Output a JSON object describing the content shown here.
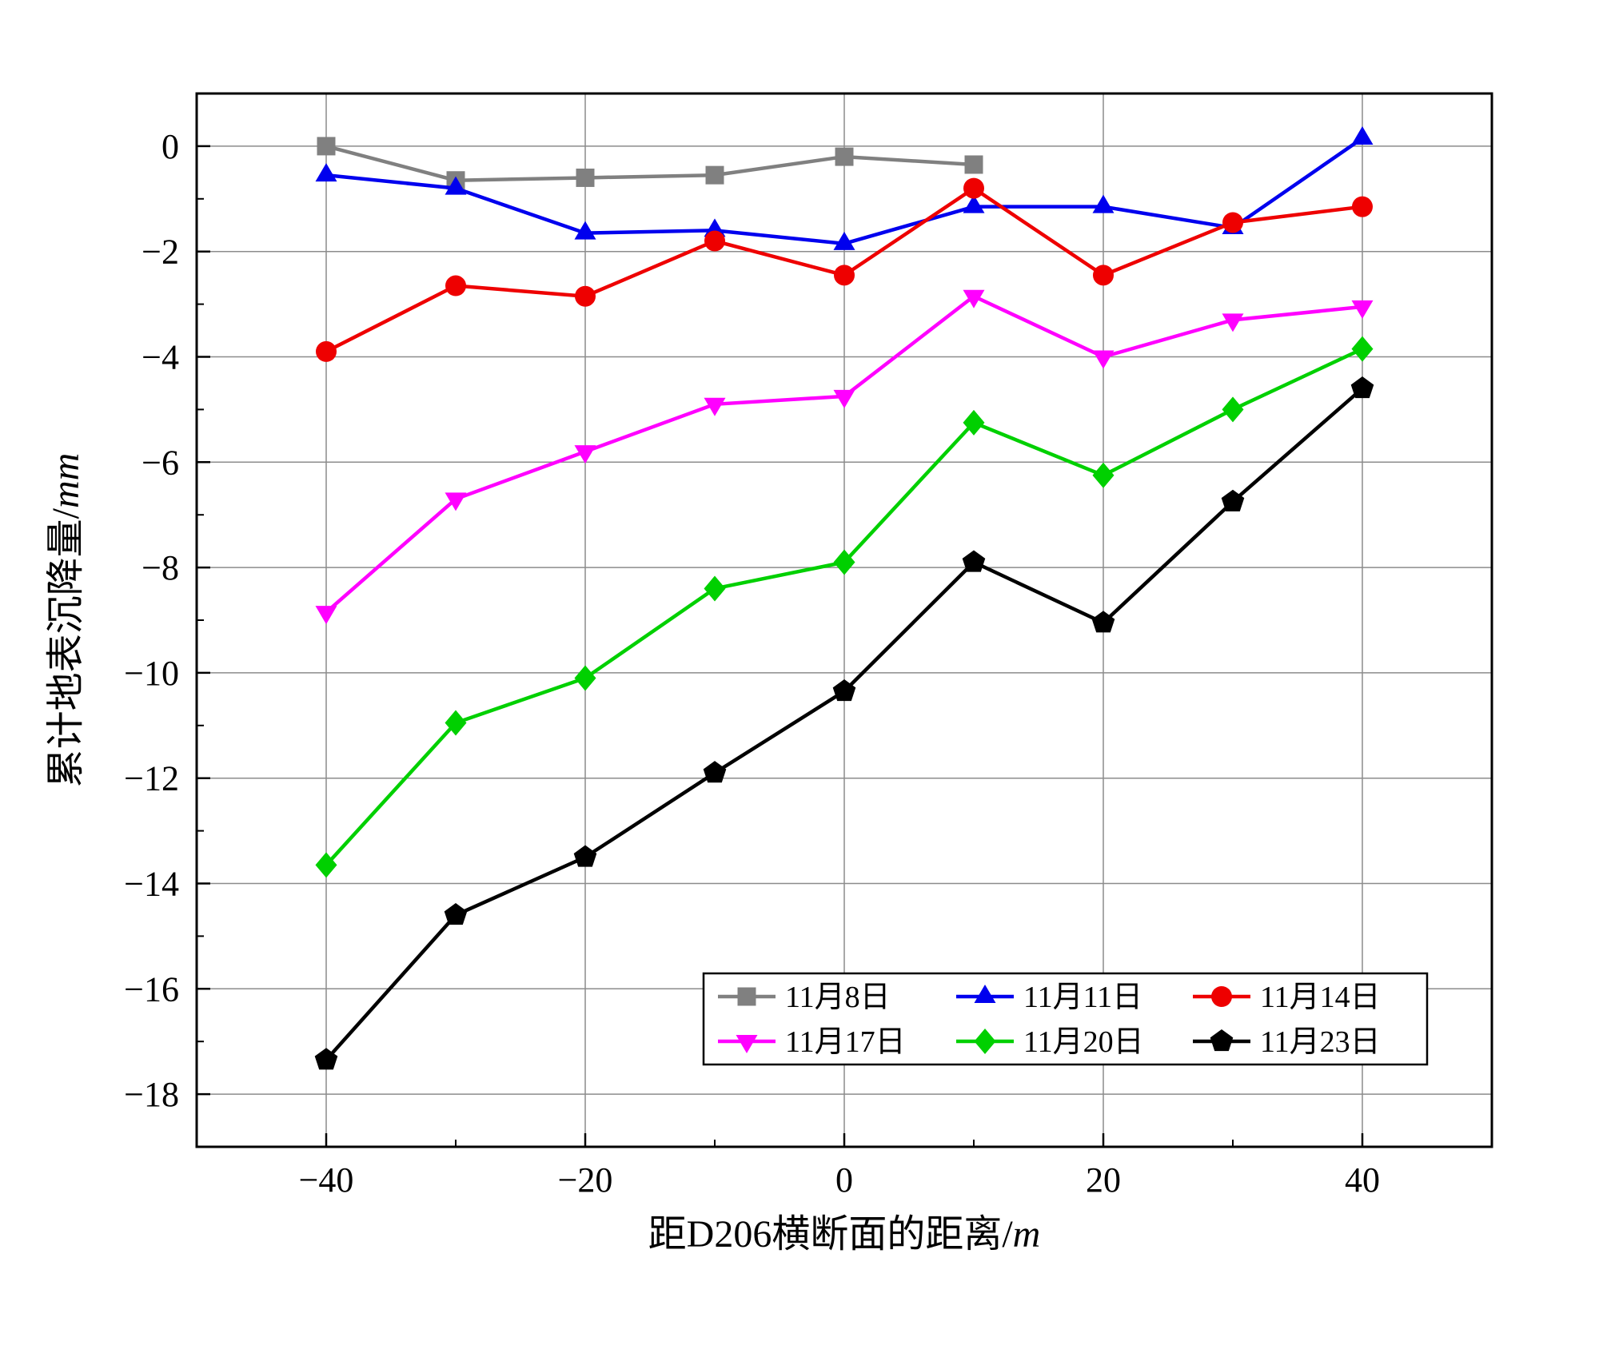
{
  "figure": {
    "background": "#ffffff"
  },
  "chart_data": {
    "type": "line",
    "title": "",
    "xlabel": "距D206横断面的距离/m",
    "ylabel": "累计地表沉降量/mm",
    "xlim": [
      -50,
      50
    ],
    "ylim": [
      -19,
      1
    ],
    "grid": true,
    "grid_color": "#8c8c8c",
    "axis_color": "#000000",
    "x_ticks": [
      -40,
      -20,
      0,
      20,
      40
    ],
    "x_tick_labels": [
      "−40",
      "−20",
      "0",
      "20",
      "40"
    ],
    "x_minor_step": 10,
    "y_ticks": [
      0,
      -2,
      -4,
      -6,
      -8,
      -10,
      -12,
      -14,
      -16,
      -18
    ],
    "y_tick_labels": [
      "0",
      "−2",
      "−4",
      "−6",
      "−8",
      "−10",
      "−12",
      "−14",
      "−16",
      "−18"
    ],
    "y_minor_step": 1,
    "x": [
      -40,
      -30,
      -20,
      -10,
      0,
      10,
      20,
      30,
      40
    ],
    "series": [
      {
        "name": "11月8日",
        "color": "#808080",
        "marker": "square",
        "values": [
          0.0,
          -0.65,
          -0.6,
          -0.55,
          -0.2,
          -0.35,
          null,
          null,
          null
        ]
      },
      {
        "name": "11月11日",
        "color": "#0000ee",
        "marker": "triangle-up",
        "values": [
          -0.55,
          -0.8,
          -1.65,
          -1.6,
          -1.85,
          -1.15,
          -1.15,
          -1.55,
          0.15
        ]
      },
      {
        "name": "11月14日",
        "color": "#ee0000",
        "marker": "circle",
        "values": [
          -3.9,
          -2.65,
          -2.85,
          -1.8,
          -2.45,
          -0.8,
          -2.45,
          -1.45,
          -1.15
        ]
      },
      {
        "name": "11月17日",
        "color": "#ff00ff",
        "marker": "triangle-down",
        "values": [
          -8.85,
          -6.7,
          -5.8,
          -4.9,
          -4.75,
          -2.85,
          -4.0,
          -3.3,
          -3.05
        ]
      },
      {
        "name": "11月20日",
        "color": "#00d000",
        "marker": "diamond",
        "values": [
          -13.65,
          -10.95,
          -10.1,
          -8.4,
          -7.9,
          -5.25,
          -6.25,
          -5.0,
          -3.85
        ]
      },
      {
        "name": "11月23日",
        "color": "#000000",
        "marker": "pentagon",
        "values": [
          -17.35,
          -14.6,
          -13.5,
          -11.9,
          -10.35,
          -7.9,
          -9.05,
          -6.75,
          -4.6
        ]
      }
    ],
    "legend": {
      "position": "inside-bottom-right",
      "border_color": "#000000",
      "background": "#ffffff",
      "rows": [
        [
          0,
          1,
          2
        ],
        [
          3,
          4,
          5
        ]
      ]
    }
  }
}
